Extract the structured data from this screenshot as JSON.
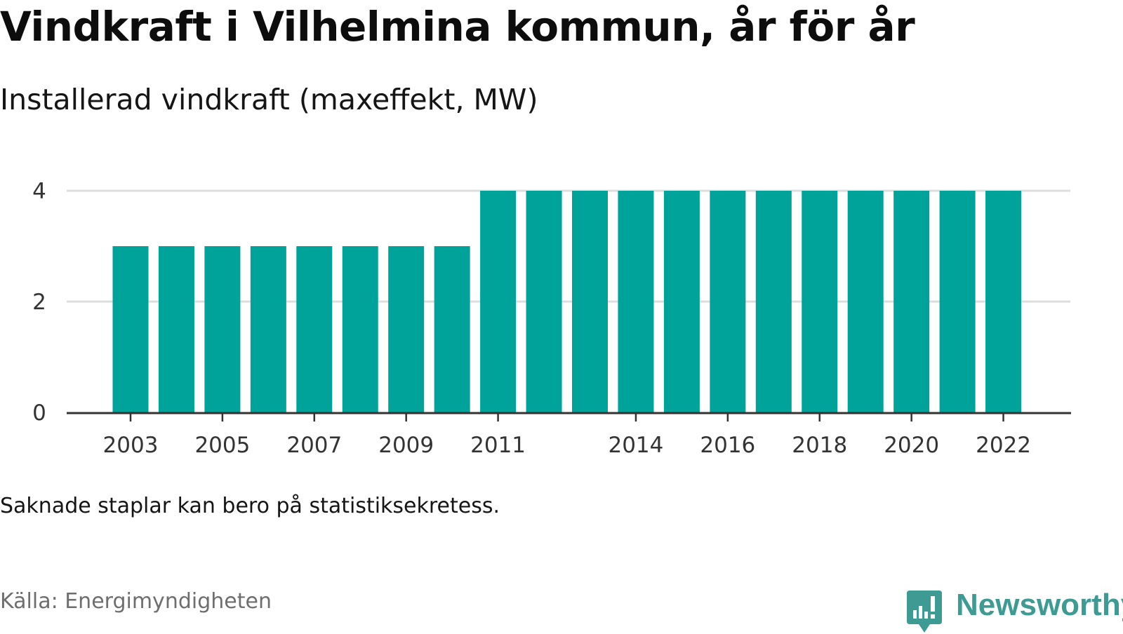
{
  "title": "Vindkraft i Vilhelmina kommun, år för år",
  "subtitle": "Installerad vindkraft (maxeffekt, MW)",
  "note": "Saknade staplar kan bero på statistiksekretess.",
  "source": "Källa: Energimyndigheten",
  "brand": {
    "name": "Newsworthy",
    "icon": "newsworthy-logo-icon",
    "color": "#3d9b94"
  },
  "colors": {
    "bar": "#00a39a",
    "grid": "#dddddd",
    "axis": "#333333"
  },
  "chart_data": {
    "type": "bar",
    "title": "Vindkraft i Vilhelmina kommun, år för år",
    "subtitle": "Installerad vindkraft (maxeffekt, MW)",
    "xlabel": "",
    "ylabel": "",
    "x": [
      2003,
      2004,
      2005,
      2006,
      2007,
      2008,
      2009,
      2010,
      2011,
      2012,
      2013,
      2014,
      2015,
      2016,
      2017,
      2018,
      2019,
      2020,
      2021,
      2022
    ],
    "values": [
      3,
      3,
      3,
      3,
      3,
      3,
      3,
      3,
      4,
      4,
      4,
      4,
      4,
      4,
      4,
      4,
      4,
      4,
      4,
      4
    ],
    "x_tick_labels": [
      "2003",
      "2005",
      "2007",
      "2009",
      "2011",
      "2014",
      "2016",
      "2018",
      "2020",
      "2022"
    ],
    "y_ticks": [
      0,
      2,
      4
    ],
    "ylim": [
      0,
      4
    ],
    "grid": true,
    "legend": "none"
  }
}
